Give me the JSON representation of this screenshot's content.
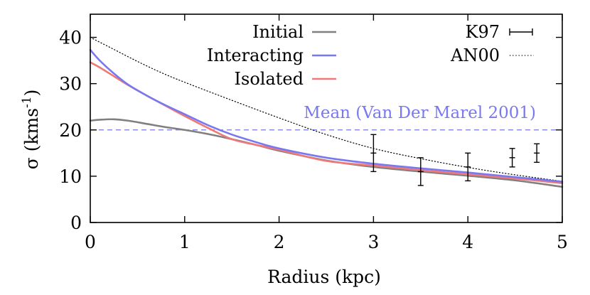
{
  "chart_data": {
    "type": "line",
    "xlabel": "Radius (kpc)",
    "ylabel_main": "σ (kms",
    "ylabel_sup": "-1",
    "ylabel_close": ")",
    "xlim": [
      0,
      5
    ],
    "ylim": [
      0,
      45
    ],
    "xticks": [
      0,
      1,
      2,
      3,
      4,
      5
    ],
    "yticks": [
      0,
      10,
      20,
      30,
      40
    ],
    "x_tick_labels": [
      "0",
      "1",
      "2",
      "3",
      "4",
      "5"
    ],
    "y_tick_labels": [
      "0",
      "10",
      "20",
      "30",
      "40"
    ],
    "grid": false,
    "series": [
      {
        "name": "Initial",
        "color": "#808080",
        "style": "solid",
        "x": [
          0,
          0.1,
          0.25,
          0.4,
          0.6,
          0.8,
          1.0,
          1.25,
          1.5,
          1.75,
          2.0,
          2.5,
          3.0,
          3.5,
          4.0,
          4.5,
          5.0
        ],
        "y": [
          22.0,
          22.2,
          22.3,
          22.0,
          21.3,
          20.6,
          20.0,
          19.1,
          18.0,
          16.8,
          15.5,
          13.4,
          12.0,
          11.0,
          10.1,
          9.1,
          7.7
        ]
      },
      {
        "name": "Interacting",
        "color": "#7878f0",
        "style": "solid",
        "x": [
          0,
          0.1,
          0.25,
          0.4,
          0.6,
          0.8,
          1.0,
          1.25,
          1.5,
          1.75,
          2.0,
          2.5,
          3.0,
          3.5,
          4.0,
          4.5,
          5.0
        ],
        "y": [
          37.3,
          35.0,
          32.2,
          29.8,
          27.4,
          25.3,
          23.4,
          21.0,
          19.0,
          17.4,
          16.0,
          14.0,
          12.7,
          11.7,
          10.8,
          9.8,
          8.8
        ]
      },
      {
        "name": "Isolated",
        "color": "#f07878",
        "style": "solid",
        "x": [
          0,
          0.1,
          0.25,
          0.4,
          0.6,
          0.8,
          1.0,
          1.25,
          1.5,
          1.75,
          2.0,
          2.5,
          3.0,
          3.5,
          4.0,
          4.5,
          5.0
        ],
        "y": [
          34.6,
          33.5,
          31.6,
          29.7,
          27.4,
          25.2,
          23.0,
          20.4,
          18.0,
          16.8,
          15.7,
          13.3,
          12.3,
          11.3,
          10.4,
          9.5,
          8.5
        ]
      },
      {
        "name": "AN00",
        "color": "#000000",
        "style": "dotted",
        "x": [
          0,
          0.25,
          0.5,
          0.75,
          1.0,
          1.5,
          2.0,
          2.5,
          3.0,
          3.5,
          4.0,
          4.5,
          5.0
        ],
        "y": [
          40.0,
          37.4,
          34.8,
          32.4,
          30.3,
          26.4,
          22.6,
          19.0,
          16.0,
          13.8,
          11.9,
          10.3,
          8.9
        ]
      }
    ],
    "errorbars": {
      "name": "K97",
      "color": "#000000",
      "points": [
        {
          "x": 3.0,
          "y": 15.0,
          "ylow": 11.0,
          "yhigh": 19.0,
          "xerr": 0.03
        },
        {
          "x": 3.5,
          "y": 11.0,
          "ylow": 8.0,
          "yhigh": 14.0,
          "xerr": 0.03
        },
        {
          "x": 4.0,
          "y": 12.0,
          "ylow": 9.0,
          "yhigh": 15.0,
          "xerr": 0.03
        },
        {
          "x": 4.47,
          "y": 14.0,
          "ylow": 12.0,
          "yhigh": 16.0,
          "xerr": 0.03
        },
        {
          "x": 4.73,
          "y": 15.0,
          "ylow": 13.0,
          "yhigh": 17.0,
          "xerr": 0.03
        }
      ]
    },
    "reference_line": {
      "y": 20,
      "label": "Mean (Van Der Marel 2001)",
      "color": "#7878f0",
      "style": "dashed"
    },
    "legend": {
      "left": [
        {
          "label": "Initial",
          "color": "#808080",
          "style": "solid"
        },
        {
          "label": "Interacting",
          "color": "#7878f0",
          "style": "solid"
        },
        {
          "label": "Isolated",
          "color": "#f07878",
          "style": "solid"
        }
      ],
      "right": [
        {
          "label": "K97",
          "color": "#000000",
          "style": "errorbar"
        },
        {
          "label": "AN00",
          "color": "#000000",
          "style": "dotted"
        }
      ]
    }
  }
}
